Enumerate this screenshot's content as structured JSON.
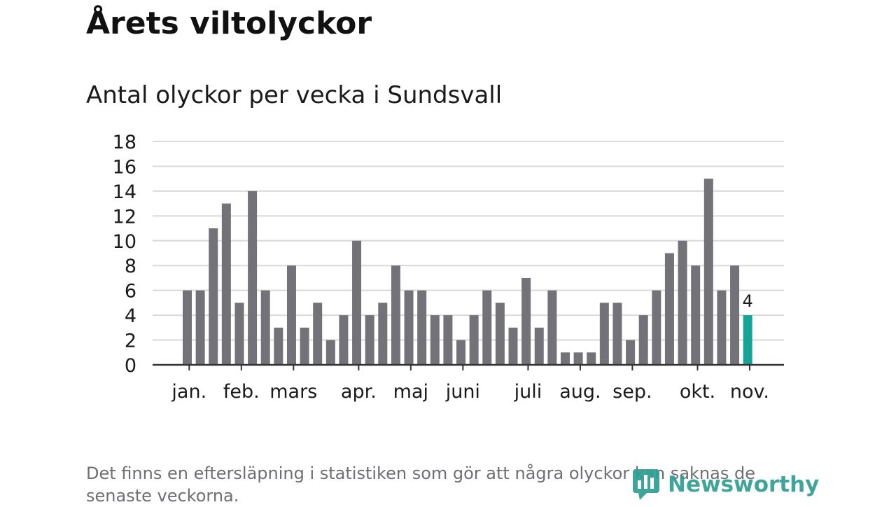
{
  "header": {
    "title": "Årets viltolyckor",
    "subtitle": "Antal olyckor per vecka i Sundsvall"
  },
  "footnote": "Det finns en eftersläpning i statistiken som gör att några olyckor kan saknas de senaste veckorna.",
  "brand": {
    "name": "Newsworthy",
    "icon": "newsworthy-logo-icon"
  },
  "colors": {
    "bar": "#737278",
    "highlight": "#17a398",
    "grid": "#d9d9d9",
    "axis": "#333333",
    "brand": "#2f9e93"
  },
  "chart_data": {
    "type": "bar",
    "title": "Antal olyckor per vecka i Sundsvall",
    "xlabel": "",
    "ylabel": "",
    "ylim": [
      0,
      18
    ],
    "yticks": [
      0,
      2,
      4,
      6,
      8,
      10,
      12,
      14,
      16,
      18
    ],
    "grid": true,
    "values": [
      6,
      6,
      11,
      13,
      5,
      14,
      6,
      3,
      8,
      3,
      5,
      2,
      4,
      10,
      4,
      5,
      8,
      6,
      6,
      4,
      4,
      2,
      4,
      6,
      5,
      3,
      7,
      3,
      6,
      1,
      1,
      1,
      5,
      5,
      2,
      4,
      6,
      9,
      10,
      8,
      15,
      6,
      8,
      4
    ],
    "highlight_index": 43,
    "data_labels": [
      {
        "index": 43,
        "text": "4"
      }
    ],
    "month_labels": [
      {
        "label": "jan.",
        "week": 0.5
      },
      {
        "label": "feb.",
        "week": 4.5
      },
      {
        "label": "mars",
        "week": 8.5
      },
      {
        "label": "apr.",
        "week": 13.5
      },
      {
        "label": "maj",
        "week": 17.5
      },
      {
        "label": "juni",
        "week": 21.5
      },
      {
        "label": "juli",
        "week": 26.5
      },
      {
        "label": "aug.",
        "week": 30.5
      },
      {
        "label": "sep.",
        "week": 34.5
      },
      {
        "label": "okt.",
        "week": 39.5
      },
      {
        "label": "nov.",
        "week": 43.5
      }
    ],
    "month_ticks": [
      0.5,
      4.5,
      8.5,
      13.5,
      17.5,
      21.5,
      26.5,
      30.5,
      34.5,
      39.5,
      43.5
    ]
  }
}
